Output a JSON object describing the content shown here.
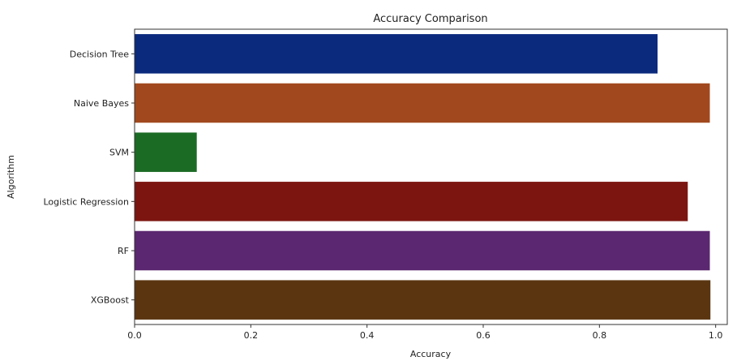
{
  "chart_data": {
    "type": "bar",
    "orientation": "horizontal",
    "title": "Accuracy Comparison",
    "xlabel": "Accuracy",
    "ylabel": "Algorithm",
    "categories": [
      "Decision Tree",
      "Naive Bayes",
      "SVM",
      "Logistic Regression",
      "RF",
      "XGBoost"
    ],
    "values": [
      0.9,
      0.99,
      0.107,
      0.952,
      0.99,
      0.991
    ],
    "colors": [
      "#0b2a7e",
      "#a1481e",
      "#1b6b24",
      "#7c1510",
      "#5b2770",
      "#5a3510"
    ],
    "xlim": [
      0,
      1.02
    ],
    "xticks": [
      0.0,
      0.2,
      0.4,
      0.6,
      0.8,
      1.0
    ],
    "xtick_labels": [
      "0.0",
      "0.2",
      "0.4",
      "0.6",
      "0.8",
      "1.0"
    ],
    "grid": false,
    "legend": "none"
  }
}
